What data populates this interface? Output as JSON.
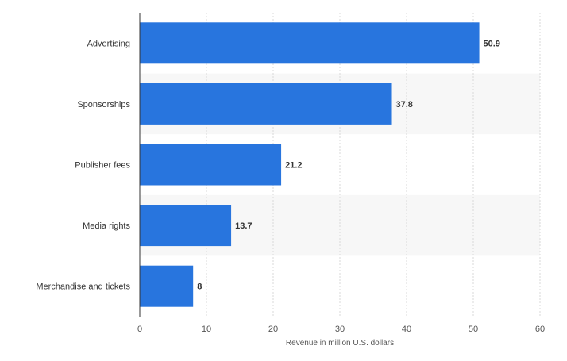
{
  "chart_data": {
    "type": "bar",
    "orientation": "horizontal",
    "categories": [
      "Advertising",
      "Sponsorships",
      "Publisher fees",
      "Media rights",
      "Merchandise and tickets"
    ],
    "values": [
      50.9,
      37.8,
      21.2,
      13.7,
      8
    ],
    "value_labels": [
      "50.9",
      "37.8",
      "21.2",
      "13.7",
      "8"
    ],
    "xlabel": "Revenue in million U.S. dollars",
    "ylabel": "",
    "xlim": [
      0,
      60
    ],
    "xticks": [
      0,
      10,
      20,
      30,
      40,
      50,
      60
    ],
    "xtick_labels": [
      "0",
      "10",
      "20",
      "30",
      "40",
      "50",
      "60"
    ],
    "grid": "vertical dashed",
    "alternating_row_bands": true,
    "colors": {
      "bar": "#2875de",
      "band": "#f7f7f7",
      "grid": "#d8d8d8",
      "axis": "#333333"
    }
  }
}
